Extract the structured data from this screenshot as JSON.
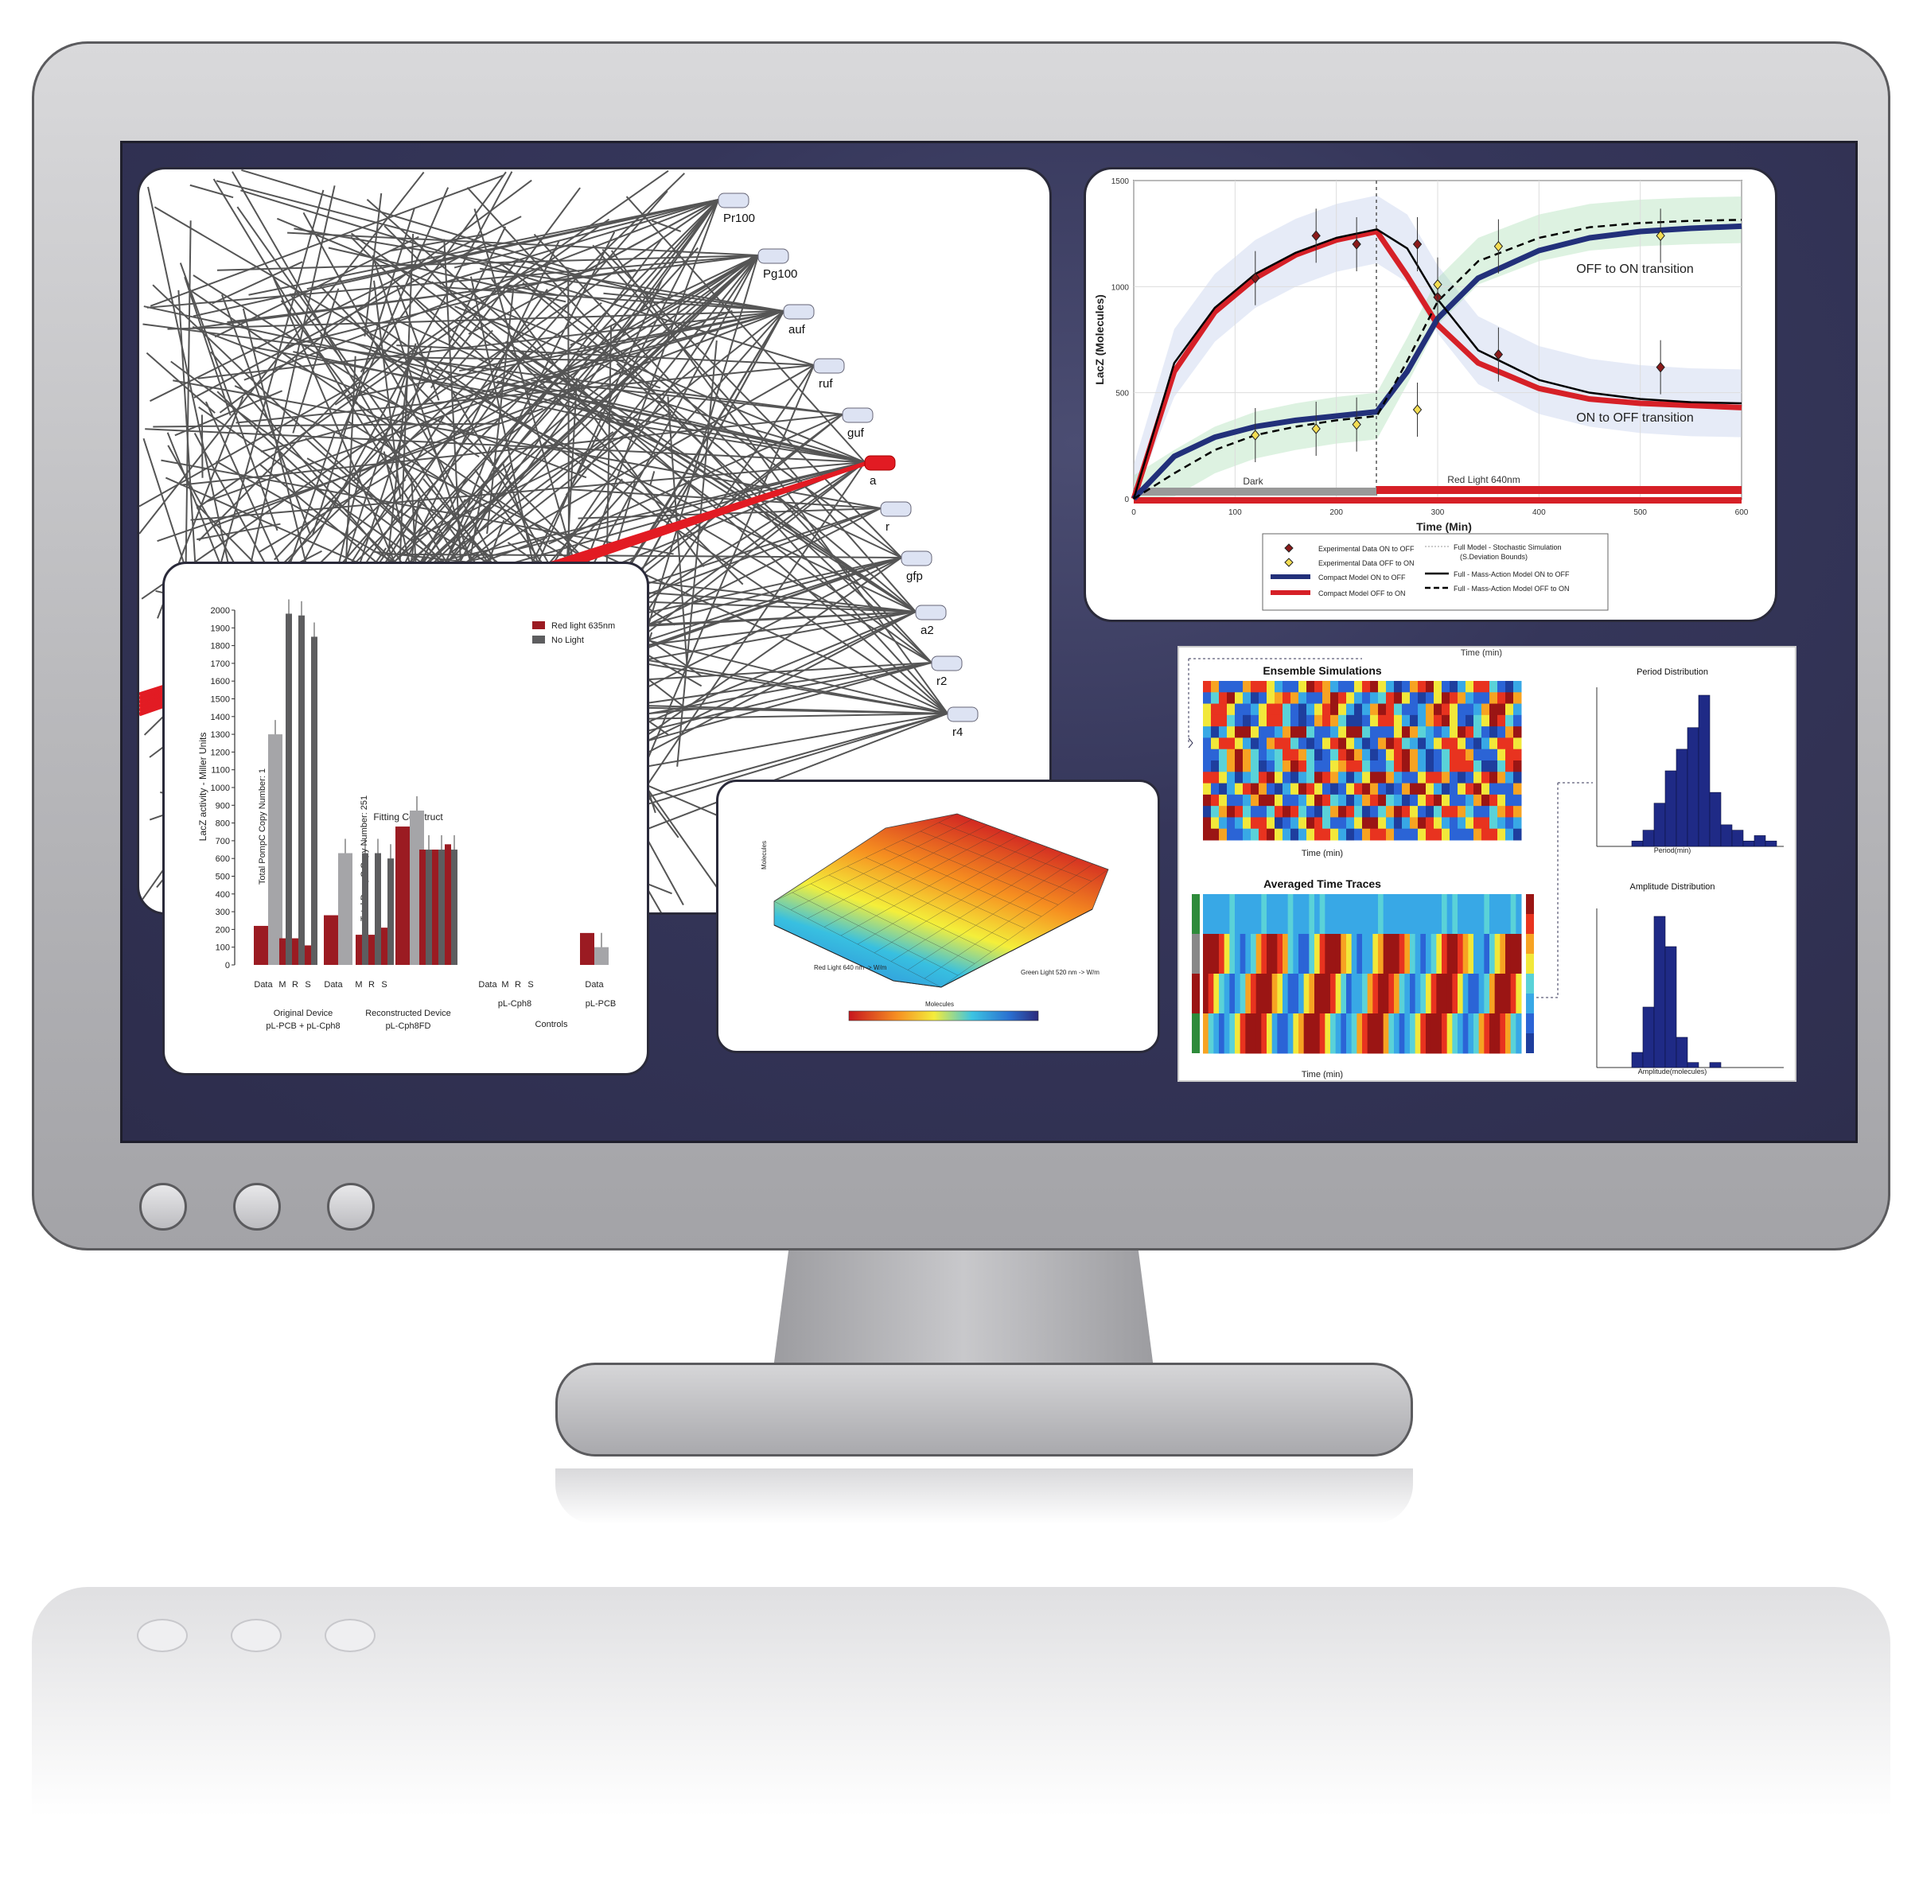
{
  "network": {
    "nodes": [
      "Pr100",
      "Pg100",
      "auf",
      "ruf",
      "guf",
      "a",
      "r",
      "gfp",
      "a2",
      "r2",
      "r4"
    ]
  },
  "bar_chart": {
    "ylabel": "LacZ activity - Miller Units",
    "yticks": [
      "0",
      "100",
      "200",
      "300",
      "400",
      "500",
      "600",
      "700",
      "800",
      "900",
      "1000",
      "1100",
      "1200",
      "1300",
      "1400",
      "1500",
      "1600",
      "1700",
      "1800",
      "1900",
      "2000"
    ],
    "legend": [
      "Red light 635nm",
      "No Light"
    ],
    "copy_label_1": "Total PompC Copy Number: 1",
    "copy_label_2": "Total PompC Copy Number: 251",
    "fitting_label": "Fitting Construct",
    "group_ticks_1": [
      "Data",
      "M",
      "R",
      "S"
    ],
    "group_ticks_2": [
      "Data",
      "M",
      "R",
      "S"
    ],
    "group_ticks_3": [
      "Data",
      "M",
      "R",
      "S"
    ],
    "group_ticks_4": [
      "Data"
    ],
    "group1_name": "Original Device",
    "group1_sub": "pL-PCB + pL-Cph8",
    "group2_name": "Reconstructed Device",
    "group2_sub": "pL-Cph8FD",
    "group3_sub": "pL-Cph8",
    "group4_sub": "pL-PCB",
    "controls_label": "Controls"
  },
  "chart_data": [
    {
      "type": "bar",
      "ylabel": "LacZ activity - Miller Units",
      "ylim": [
        0,
        2000
      ],
      "categories": [
        "Data",
        "M",
        "R",
        "S",
        "Data",
        "M",
        "R",
        "S",
        "Data",
        "M",
        "R",
        "S",
        "Data"
      ],
      "series": [
        {
          "name": "Red light 635nm",
          "values": [
            220,
            150,
            150,
            110,
            280,
            170,
            170,
            210,
            780,
            650,
            650,
            680,
            180
          ]
        },
        {
          "name": "No Light",
          "values": [
            1300,
            1980,
            1970,
            1850,
            630,
            630,
            630,
            600,
            870,
            650,
            650,
            650,
            100
          ]
        }
      ]
    },
    {
      "type": "line",
      "xlabel": "Time (Min)",
      "ylabel": "LacZ (Molecules)",
      "xlim": [
        0,
        600
      ],
      "ylim": [
        0,
        1500
      ],
      "xticks": [
        0,
        100,
        200,
        300,
        400,
        500,
        600
      ],
      "yticks": [
        0,
        500,
        1000,
        1500
      ],
      "regions": [
        "Dark",
        "Red Light 640nm"
      ],
      "annotations": [
        "OFF to ON transition",
        "ON to OFF transition"
      ],
      "legend": [
        "Experimental Data ON to OFF",
        "Experimental Data OFF to ON",
        "Compact Model ON to OFF",
        "Compact Model OFF to ON",
        "Full Model - Stochastic Simulation",
        "(S.Deviation Bounds)",
        "Full - Mass-Action Model ON to OFF",
        "Full - Mass-Action Model OFF to ON"
      ],
      "series": [
        {
          "name": "Compact Model OFF to ON",
          "x": [
            0,
            40,
            80,
            120,
            160,
            200,
            240,
            270,
            300,
            340,
            400,
            450,
            500,
            550,
            600
          ],
          "y": [
            0,
            600,
            880,
            1040,
            1150,
            1220,
            1260,
            1050,
            820,
            640,
            520,
            470,
            450,
            440,
            430
          ]
        },
        {
          "name": "Compact Model ON to OFF",
          "x": [
            0,
            40,
            80,
            120,
            160,
            200,
            240,
            270,
            300,
            340,
            400,
            450,
            500,
            550,
            600
          ],
          "y": [
            0,
            200,
            290,
            340,
            370,
            390,
            410,
            600,
            850,
            1040,
            1170,
            1230,
            1260,
            1275,
            1285
          ]
        },
        {
          "name": "Full - Mass-Action Model ON to OFF",
          "x": [
            0,
            40,
            80,
            120,
            160,
            200,
            240,
            270,
            300,
            340,
            400,
            450,
            500,
            550,
            600
          ],
          "y": [
            0,
            640,
            900,
            1060,
            1160,
            1230,
            1270,
            1180,
            940,
            700,
            560,
            500,
            470,
            455,
            450
          ]
        },
        {
          "name": "Full - Mass-Action Model OFF to ON",
          "x": [
            0,
            40,
            80,
            120,
            160,
            200,
            240,
            270,
            300,
            340,
            400,
            450,
            500,
            550,
            600
          ],
          "y": [
            0,
            120,
            230,
            300,
            340,
            370,
            390,
            650,
            930,
            1120,
            1230,
            1280,
            1300,
            1310,
            1315
          ]
        },
        {
          "name": "Experimental Data ON to OFF",
          "x": [
            120,
            180,
            220,
            280,
            300,
            360,
            520
          ],
          "y": [
            1040,
            1240,
            1200,
            1200,
            950,
            680,
            620
          ]
        },
        {
          "name": "Experimental Data OFF to ON",
          "x": [
            120,
            180,
            220,
            280,
            300,
            360,
            520
          ],
          "y": [
            300,
            330,
            350,
            420,
            1010,
            1190,
            1240
          ]
        }
      ]
    },
    {
      "type": "heatmap",
      "title": "Ensemble Simulations",
      "xlabel": "Time (min)"
    },
    {
      "type": "heatmap",
      "title": "Averaged Time Traces",
      "xlabel": "Time (min)"
    },
    {
      "type": "bar",
      "title": "Period Distribution",
      "xlabel": "Period(min)",
      "values": [
        1,
        3,
        8,
        14,
        18,
        22,
        28,
        10,
        4,
        3,
        1,
        2,
        1
      ]
    },
    {
      "type": "bar",
      "title": "Amplitude Distribution",
      "xlabel": "Amplitude(molecules)",
      "values": [
        3,
        12,
        30,
        24,
        6,
        1,
        0,
        1
      ]
    },
    {
      "type": "area",
      "ylabel": "Molecules",
      "xlabel": "Green Light 520 nm -> W/m",
      "zlabel": "Red Light 640 nm -> W/m",
      "colorbar_label": "Molecules"
    }
  ],
  "line_chart_text": {
    "ylabel": "LacZ (Molecules)",
    "xlabel": "Time (Min)",
    "top_label": "Time (min)",
    "region_dark": "Dark",
    "region_red": "Red Light 640nm",
    "off_on": "OFF to ON transition",
    "on_off": "ON to OFF transition",
    "xticks": [
      "0",
      "100",
      "200",
      "300",
      "400",
      "500",
      "600"
    ],
    "yticks": [
      "0",
      "500",
      "1000",
      "1500"
    ],
    "legend_1": "Experimental Data ON to OFF",
    "legend_2": "Experimental Data OFF to ON",
    "legend_3": "Compact Model ON to OFF",
    "legend_4": "Compact Model OFF to ON",
    "legend_5": "Full Model - Stochastic Simulation",
    "legend_6": "(S.Deviation Bounds)",
    "legend_7": "Full - Mass-Action Model ON to OFF",
    "legend_8": "Full - Mass-Action Model OFF to ON"
  },
  "sim_text": {
    "ensemble_title": "Ensemble Simulations",
    "averaged_title": "Averaged Time Traces",
    "time_label": "Time (min)",
    "period_title": "Period Distribution",
    "period_xlabel": "Period(min)",
    "amplitude_title": "Amplitude Distribution",
    "amplitude_xlabel": "Amplitude(molecules)"
  },
  "surface_text": {
    "zlabel": "Molecules",
    "yaxis": "Red Light 640 nm -> W/m",
    "xaxis": "Green Light 520 nm -> W/m",
    "colorbar_label": "Molecules"
  },
  "colors": {
    "bezel": "#bdbdc0",
    "screen": "#33334f",
    "red": "#d62027",
    "navy": "#22307a",
    "darkred": "#9b1b22",
    "gray_bar": "#5d5d5f"
  }
}
